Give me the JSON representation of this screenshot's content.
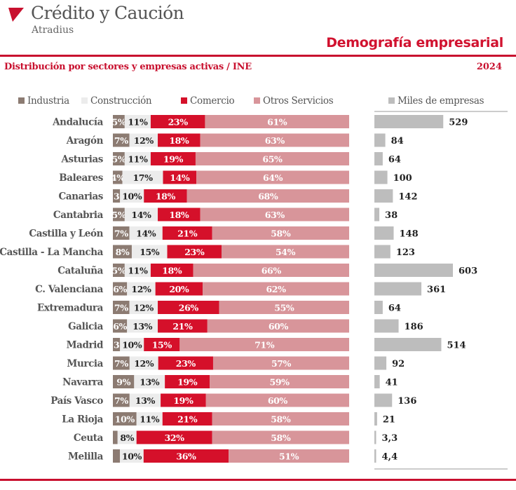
{
  "brand": {
    "name": "Crédito y Caución",
    "subtitle": "Atradius"
  },
  "header": {
    "title": "Demografía empresarial",
    "subtitle": "Distribución por sectores y empresas activas / INE",
    "year": "2024"
  },
  "colors": {
    "accent": "#c8102e",
    "industria": "#8c7b72",
    "construccion": "#ececec",
    "comercio": "#d5102a",
    "otros_servicios": "#d8959a",
    "empresas": "#bdbdbd"
  },
  "chart_data": [
    {
      "type": "bar",
      "stacked": true,
      "orientation": "horizontal",
      "categories": [
        "Andalucía",
        "Aragón",
        "Asturias",
        "Baleares",
        "Canarias",
        "Cantabria",
        "Castilla y León",
        "Castilla - La Mancha",
        "Cataluña",
        "C. Valenciana",
        "Extremadura",
        "Galicia",
        "Madrid",
        "Murcia",
        "Navarra",
        "País Vasco",
        "La Rioja",
        "Ceuta",
        "Melilla"
      ],
      "series": [
        {
          "name": "Industria",
          "values": [
            5,
            7,
            5,
            4,
            3,
            5,
            7,
            8,
            5,
            6,
            7,
            6,
            3,
            7,
            9,
            7,
            10,
            2,
            3
          ],
          "labels": [
            "5%",
            "7%",
            "5%",
            "4%",
            "3",
            "5%",
            "7%",
            "8%",
            "5%",
            "6%",
            "7%",
            "6%",
            "3",
            "7%",
            "9%",
            "7%",
            "10%",
            "",
            ""
          ]
        },
        {
          "name": "Construcción",
          "values": [
            11,
            12,
            11,
            17,
            10,
            14,
            14,
            15,
            11,
            12,
            12,
            13,
            10,
            12,
            13,
            13,
            11,
            8,
            10
          ],
          "labels": [
            "11%",
            "12%",
            "11%",
            "17%",
            "10%",
            "14%",
            "14%",
            "15%",
            "11%",
            "12%",
            "12%",
            "13%",
            "10%",
            "12%",
            "13%",
            "13%",
            "11%",
            "8%",
            "10%"
          ]
        },
        {
          "name": "Comercio",
          "values": [
            23,
            18,
            19,
            14,
            18,
            18,
            21,
            23,
            18,
            20,
            26,
            21,
            15,
            23,
            19,
            19,
            21,
            32,
            36
          ],
          "labels": [
            "23%",
            "18%",
            "19%",
            "14%",
            "18%",
            "18%",
            "21%",
            "23%",
            "18%",
            "20%",
            "26%",
            "21%",
            "15%",
            "23%",
            "19%",
            "19%",
            "21%",
            "32%",
            "36%"
          ]
        },
        {
          "name": "Otros Servicios",
          "values": [
            61,
            63,
            65,
            64,
            68,
            63,
            58,
            54,
            66,
            62,
            55,
            60,
            71,
            57,
            59,
            60,
            58,
            58,
            51
          ],
          "labels": [
            "61%",
            "63%",
            "65%",
            "64%",
            "68%",
            "63%",
            "58%",
            "54%",
            "66%",
            "62%",
            "55%",
            "60%",
            "71%",
            "57%",
            "59%",
            "60%",
            "58%",
            "58%",
            "51%"
          ]
        }
      ],
      "xlim": [
        0,
        100
      ],
      "legend": "top"
    },
    {
      "type": "bar",
      "orientation": "horizontal",
      "categories": [
        "Andalucía",
        "Aragón",
        "Asturias",
        "Baleares",
        "Canarias",
        "Cantabria",
        "Castilla y León",
        "Castilla - La Mancha",
        "Cataluña",
        "C. Valenciana",
        "Extremadura",
        "Galicia",
        "Madrid",
        "Murcia",
        "Navarra",
        "País Vasco",
        "La Rioja",
        "Ceuta",
        "Melilla"
      ],
      "series": [
        {
          "name": "Miles de empresas",
          "values": [
            529,
            84,
            64,
            100,
            142,
            38,
            148,
            123,
            603,
            361,
            64,
            186,
            514,
            92,
            41,
            136,
            21,
            3.3,
            4.4
          ],
          "labels": [
            "529",
            "84",
            "64",
            "100",
            "142",
            "38",
            "148",
            "123",
            "603",
            "361",
            "64",
            "186",
            "514",
            "92",
            "41",
            "136",
            "21",
            "3,3",
            "4,4"
          ]
        }
      ],
      "legend": "top"
    }
  ]
}
